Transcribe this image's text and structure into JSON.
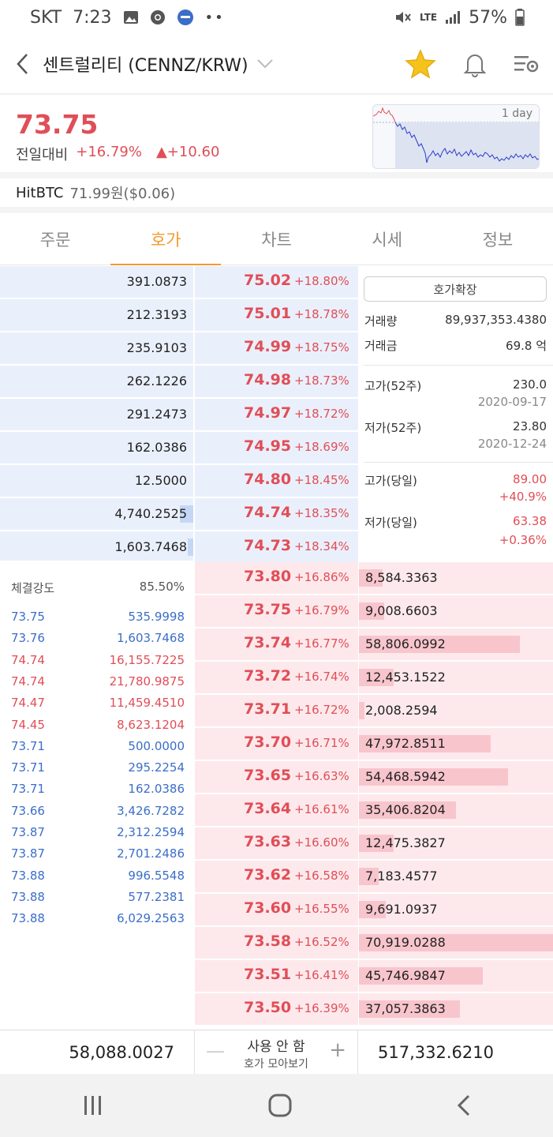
{
  "status_bar": {
    "carrier": "SKT",
    "time": "7:23",
    "signal": "LTE",
    "battery": "57%"
  },
  "header": {
    "title": "센트럴리티 (CENNZ/KRW)"
  },
  "price": {
    "current": "73.75",
    "change_label": "전일대비",
    "change_pct": "+16.79%",
    "change_amt": "▲+10.60",
    "chart_period": "1 day"
  },
  "exchange": {
    "name": "HitBTC",
    "price": "71.99원($0.06)"
  },
  "tabs": [
    {
      "label": "주문"
    },
    {
      "label": "호가"
    },
    {
      "label": "차트"
    },
    {
      "label": "시세"
    },
    {
      "label": "정보"
    }
  ],
  "asks": [
    {
      "qty": "391.0873",
      "price": "75.02",
      "pct": "+18.80%",
      "fill": 0
    },
    {
      "qty": "212.3193",
      "price": "75.01",
      "pct": "+18.78%",
      "fill": 0
    },
    {
      "qty": "235.9103",
      "price": "74.99",
      "pct": "+18.75%",
      "fill": 0
    },
    {
      "qty": "262.1226",
      "price": "74.98",
      "pct": "+18.73%",
      "fill": 0
    },
    {
      "qty": "291.2473",
      "price": "74.97",
      "pct": "+18.72%",
      "fill": 0
    },
    {
      "qty": "162.0386",
      "price": "74.95",
      "pct": "+18.69%",
      "fill": 0
    },
    {
      "qty": "12.5000",
      "price": "74.80",
      "pct": "+18.45%",
      "fill": 0
    },
    {
      "qty": "4,740.2525",
      "price": "74.74",
      "pct": "+18.35%",
      "fill": 0.07
    },
    {
      "qty": "1,603.7468",
      "price": "74.73",
      "pct": "+18.34%",
      "fill": 0.03
    }
  ],
  "bids": [
    {
      "price": "73.80",
      "pct": "+16.86%",
      "qty": "8,584.3363",
      "fill": 0.12
    },
    {
      "price": "73.75",
      "pct": "+16.79%",
      "qty": "9,008.6603",
      "fill": 0.13
    },
    {
      "price": "73.74",
      "pct": "+16.77%",
      "qty": "58,806.0992",
      "fill": 0.83
    },
    {
      "price": "73.72",
      "pct": "+16.74%",
      "qty": "12,453.1522",
      "fill": 0.18
    },
    {
      "price": "73.71",
      "pct": "+16.72%",
      "qty": "2,008.2594",
      "fill": 0.03
    },
    {
      "price": "73.70",
      "pct": "+16.71%",
      "qty": "47,972.8511",
      "fill": 0.68
    },
    {
      "price": "73.65",
      "pct": "+16.63%",
      "qty": "54,468.5942",
      "fill": 0.77
    },
    {
      "price": "73.64",
      "pct": "+16.61%",
      "qty": "35,406.8204",
      "fill": 0.5
    },
    {
      "price": "73.63",
      "pct": "+16.60%",
      "qty": "12,475.3827",
      "fill": 0.18
    },
    {
      "price": "73.62",
      "pct": "+16.58%",
      "qty": "7,183.4577",
      "fill": 0.1
    },
    {
      "price": "73.60",
      "pct": "+16.55%",
      "qty": "9,691.0937",
      "fill": 0.14
    },
    {
      "price": "73.58",
      "pct": "+16.52%",
      "qty": "70,919.0288",
      "fill": 1.0
    },
    {
      "price": "73.51",
      "pct": "+16.41%",
      "qty": "45,746.9847",
      "fill": 0.64
    },
    {
      "price": "73.50",
      "pct": "+16.39%",
      "qty": "37,057.3863",
      "fill": 0.52
    }
  ],
  "info": {
    "expand_label": "호가확장",
    "volume_label": "거래량",
    "volume": "89,937,353.4380",
    "amount_label": "거래금",
    "amount": "69.8 억",
    "high52_label": "고가(52주)",
    "high52": "230.0",
    "high52_date": "2020-09-17",
    "low52_label": "저가(52주)",
    "low52": "23.80",
    "low52_date": "2020-12-24",
    "high_today_label": "고가(당일)",
    "high_today": "89.00",
    "high_today_pct": "+40.9%",
    "low_today_label": "저가(당일)",
    "low_today": "63.38",
    "low_today_pct": "+0.36%"
  },
  "trades": {
    "strength_label": "체결강도",
    "strength": "85.50%",
    "rows": [
      {
        "price": "73.75",
        "qty": "535.9998",
        "side": "blue"
      },
      {
        "price": "73.76",
        "qty": "1,603.7468",
        "side": "blue"
      },
      {
        "price": "74.74",
        "qty": "16,155.7225",
        "side": "red"
      },
      {
        "price": "74.74",
        "qty": "21,780.9875",
        "side": "red"
      },
      {
        "price": "74.47",
        "qty": "11,459.4510",
        "side": "red"
      },
      {
        "price": "74.45",
        "qty": "8,623.1204",
        "side": "red"
      },
      {
        "price": "73.71",
        "qty": "500.0000",
        "side": "blue"
      },
      {
        "price": "73.71",
        "qty": "295.2254",
        "side": "blue"
      },
      {
        "price": "73.71",
        "qty": "162.0386",
        "side": "blue"
      },
      {
        "price": "73.66",
        "qty": "3,426.7282",
        "side": "blue"
      },
      {
        "price": "73.87",
        "qty": "2,312.2594",
        "side": "blue"
      },
      {
        "price": "73.87",
        "qty": "2,701.2486",
        "side": "blue"
      },
      {
        "price": "73.88",
        "qty": "996.5548",
        "side": "blue"
      },
      {
        "price": "73.88",
        "qty": "577.2381",
        "side": "blue"
      },
      {
        "price": "73.88",
        "qty": "6,029.2563",
        "side": "blue"
      }
    ]
  },
  "totals": {
    "ask_total": "58,088.0027",
    "bid_total": "517,332.6210",
    "group_title": "사용 안 함",
    "group_sub": "호가 모아보기"
  },
  "colors": {
    "accent": "#f29b2c",
    "up": "#e04e57",
    "down": "#3b6ec8",
    "ask_bg": "#eaf0fb",
    "bid_bg": "#fde9ec"
  }
}
